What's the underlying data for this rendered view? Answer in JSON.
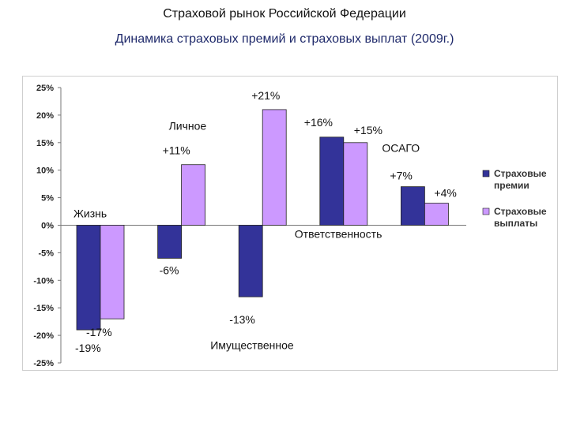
{
  "header": {
    "title": "Страховой рынок Российской Федерации",
    "subtitle": "Динамика страховых премий и страховых выплат (2009г.)"
  },
  "chart_data": {
    "type": "bar",
    "categories": [
      "Жизнь",
      "Личное",
      "Имущественное",
      "Ответственность",
      "ОСАГО"
    ],
    "series": [
      {
        "name": "Страховые премии",
        "values": [
          -19,
          -6,
          -13,
          16,
          7
        ],
        "color": "#333399",
        "labels": [
          "-19%",
          "-6%",
          "-13%",
          "+16%",
          "+7%"
        ]
      },
      {
        "name": "Страховые выплаты",
        "values": [
          -17,
          11,
          21,
          15,
          4
        ],
        "color": "#cc99ff",
        "labels": [
          "-17%",
          "+11%",
          "+21%",
          "+15%",
          "+4%"
        ]
      }
    ],
    "yticks": [
      "25%",
      "20%",
      "15%",
      "10%",
      "5%",
      "0%",
      "-5%",
      "-10%",
      "-15%",
      "-20%",
      "-25%"
    ],
    "ylim": [
      -25,
      25
    ],
    "grid": false,
    "legend_position": "right"
  }
}
